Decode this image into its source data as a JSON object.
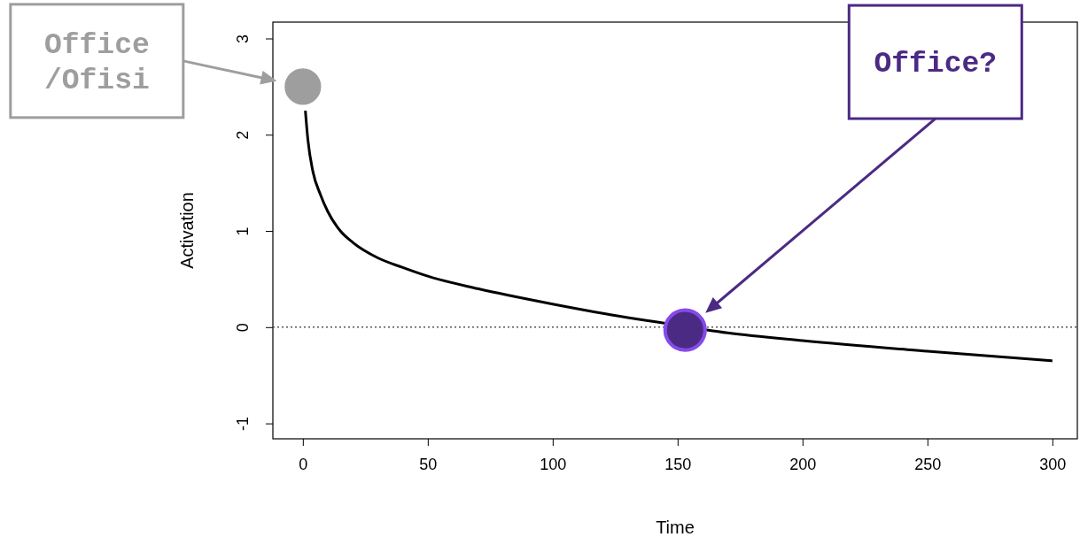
{
  "chart_data": {
    "type": "line",
    "xlabel": "Time",
    "ylabel": "Activation",
    "xlim": [
      -12,
      310
    ],
    "ylim": [
      -1.16,
      3.17
    ],
    "xticks": [
      0,
      50,
      100,
      150,
      200,
      250,
      300
    ],
    "yticks": [
      -1,
      0,
      1,
      2,
      3
    ],
    "grid": false,
    "series": [
      {
        "color": "#000000",
        "x": [
          1,
          2,
          4,
          7,
          10,
          15,
          20,
          30,
          40,
          50,
          70,
          100,
          130,
          140,
          170,
          200,
          250,
          300
        ],
        "values": [
          2.25,
          1.95,
          1.62,
          1.38,
          1.2,
          1.0,
          0.88,
          0.72,
          0.62,
          0.53,
          0.4,
          0.24,
          0.1,
          0.06,
          -0.06,
          -0.14,
          -0.25,
          -0.35
        ]
      },
      {
        "type": "scatter",
        "color": "#9e9e9e",
        "marker": "circle",
        "x": [
          0
        ],
        "values": [
          2.5
        ]
      },
      {
        "type": "scatter",
        "color": "#4b2a84",
        "marker": "circle",
        "x": [
          153
        ],
        "values": [
          -0.03
        ]
      }
    ],
    "ref_lines": [
      {
        "axis": "y",
        "value": 0,
        "line_style": "dotted",
        "color": "#555555"
      }
    ],
    "annotations": [
      "Office\n/Ofisi",
      "Office?"
    ]
  }
}
